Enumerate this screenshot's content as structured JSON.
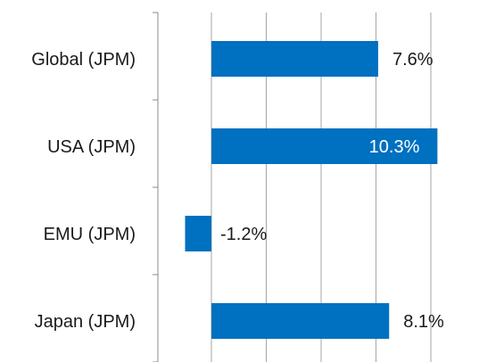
{
  "chart_data": {
    "type": "bar",
    "orientation": "horizontal",
    "categories": [
      "Global (JPM)",
      "USA (JPM)",
      "EMU (JPM)",
      "Japan (JPM)"
    ],
    "values": [
      7.6,
      10.3,
      -1.2,
      8.1
    ],
    "data_labels": [
      "7.6%",
      "10.3%",
      "-1.2%",
      "8.1%"
    ],
    "xlim": [
      -2.5,
      12.5
    ],
    "x_gridline_step": 2.5,
    "grid": true,
    "legend": "none",
    "bar_color": "#0070c0",
    "title": "",
    "xlabel": "",
    "ylabel": ""
  }
}
